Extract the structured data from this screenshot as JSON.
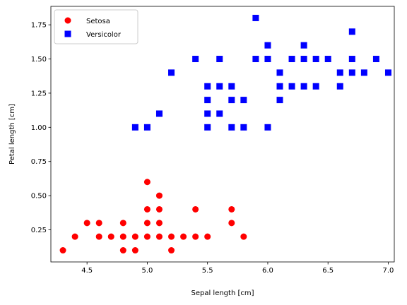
{
  "chart_data": {
    "type": "scatter",
    "xlabel": "Sepal length [cm]",
    "ylabel": "Petal length [cm]",
    "xlim": [
      4.2,
      7.05
    ],
    "ylim": [
      0.015,
      1.885
    ],
    "xticks": [
      4.5,
      5.0,
      5.5,
      6.0,
      6.5,
      7.0
    ],
    "xtick_labels": [
      "4.5",
      "5.0",
      "5.5",
      "6.0",
      "6.5",
      "7.0"
    ],
    "yticks": [
      0.25,
      0.5,
      0.75,
      1.0,
      1.25,
      1.5,
      1.75
    ],
    "ytick_labels": [
      "0.25",
      "0.50",
      "0.75",
      "1.00",
      "1.25",
      "1.50",
      "1.75"
    ],
    "grid": false,
    "legend_position": "top-left",
    "series": [
      {
        "name": "Setosa",
        "marker": "circle",
        "color": "#ff0000",
        "points": [
          [
            4.3,
            0.1
          ],
          [
            4.4,
            0.2
          ],
          [
            4.5,
            0.3
          ],
          [
            4.6,
            0.3
          ],
          [
            4.6,
            0.2
          ],
          [
            4.7,
            0.2
          ],
          [
            4.8,
            0.3
          ],
          [
            4.8,
            0.2
          ],
          [
            4.8,
            0.1
          ],
          [
            4.9,
            0.2
          ],
          [
            4.9,
            0.1
          ],
          [
            5.0,
            0.6
          ],
          [
            5.0,
            0.4
          ],
          [
            5.0,
            0.3
          ],
          [
            5.0,
            0.2
          ],
          [
            5.1,
            0.5
          ],
          [
            5.1,
            0.4
          ],
          [
            5.1,
            0.3
          ],
          [
            5.1,
            0.2
          ],
          [
            5.2,
            0.2
          ],
          [
            5.2,
            0.1
          ],
          [
            5.3,
            0.2
          ],
          [
            5.4,
            0.4
          ],
          [
            5.4,
            0.2
          ],
          [
            5.5,
            0.2
          ],
          [
            5.7,
            0.4
          ],
          [
            5.7,
            0.3
          ],
          [
            5.8,
            0.2
          ]
        ]
      },
      {
        "name": "Versicolor",
        "marker": "square",
        "color": "#0000ff",
        "points": [
          [
            4.9,
            1.0
          ],
          [
            5.0,
            1.0
          ],
          [
            5.1,
            1.1
          ],
          [
            5.2,
            1.4
          ],
          [
            5.4,
            1.5
          ],
          [
            5.5,
            1.3
          ],
          [
            5.5,
            1.2
          ],
          [
            5.5,
            1.1
          ],
          [
            5.5,
            1.0
          ],
          [
            5.6,
            1.5
          ],
          [
            5.6,
            1.3
          ],
          [
            5.6,
            1.1
          ],
          [
            5.7,
            1.3
          ],
          [
            5.7,
            1.2
          ],
          [
            5.7,
            1.0
          ],
          [
            5.8,
            1.2
          ],
          [
            5.8,
            1.0
          ],
          [
            5.9,
            1.8
          ],
          [
            5.9,
            1.5
          ],
          [
            6.0,
            1.6
          ],
          [
            6.0,
            1.5
          ],
          [
            6.0,
            1.0
          ],
          [
            6.1,
            1.4
          ],
          [
            6.1,
            1.3
          ],
          [
            6.1,
            1.2
          ],
          [
            6.2,
            1.5
          ],
          [
            6.2,
            1.3
          ],
          [
            6.3,
            1.6
          ],
          [
            6.3,
            1.5
          ],
          [
            6.3,
            1.3
          ],
          [
            6.4,
            1.5
          ],
          [
            6.4,
            1.3
          ],
          [
            6.5,
            1.5
          ],
          [
            6.6,
            1.4
          ],
          [
            6.6,
            1.3
          ],
          [
            6.7,
            1.7
          ],
          [
            6.7,
            1.5
          ],
          [
            6.7,
            1.4
          ],
          [
            6.8,
            1.4
          ],
          [
            6.9,
            1.5
          ],
          [
            7.0,
            1.4
          ]
        ]
      }
    ]
  }
}
